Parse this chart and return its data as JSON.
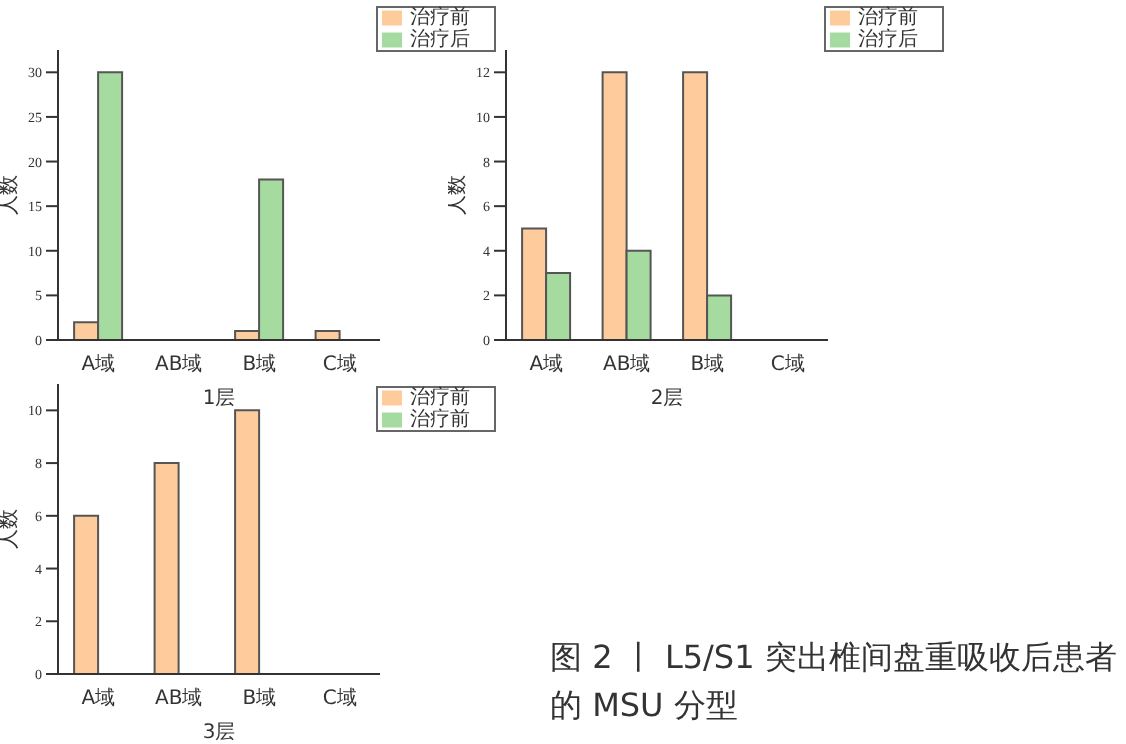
{
  "chart_data": [
    {
      "type": "bar",
      "categories": [
        "A域",
        "AB域",
        "B域",
        "C域"
      ],
      "xlabel": "1层",
      "ylabel": "人数",
      "ylim": [
        0,
        32.5
      ],
      "yticks": [
        0,
        5,
        10,
        15,
        20,
        25,
        30
      ],
      "legend": "top right",
      "series": [
        {
          "name": "治疗前",
          "color": "#fdcb9c",
          "values": [
            2,
            0,
            1,
            1
          ]
        },
        {
          "name": "治疗后",
          "color": "#a6dba0",
          "values": [
            30,
            0,
            18,
            0
          ]
        }
      ]
    },
    {
      "type": "bar",
      "categories": [
        "A域",
        "AB域",
        "B域",
        "C域"
      ],
      "xlabel": "2层",
      "ylabel": "人数",
      "ylim": [
        0,
        13
      ],
      "yticks": [
        0,
        2,
        4,
        6,
        8,
        10,
        12
      ],
      "legend": "top right",
      "series": [
        {
          "name": "治疗前",
          "color": "#fdcb9c",
          "values": [
            5,
            12,
            12,
            0
          ]
        },
        {
          "name": "治疗后",
          "color": "#a6dba0",
          "values": [
            3,
            4,
            2,
            0
          ]
        }
      ]
    },
    {
      "type": "bar",
      "categories": [
        "A域",
        "AB域",
        "B域",
        "C域"
      ],
      "xlabel": "3层",
      "ylabel": "人数",
      "ylim": [
        0,
        11
      ],
      "yticks": [
        0,
        2,
        4,
        6,
        8,
        10
      ],
      "legend": "top right",
      "series": [
        {
          "name": "治疗前",
          "color": "#fdcb9c",
          "values": [
            6,
            8,
            10,
            0
          ]
        },
        {
          "name": "治疗前",
          "color": "#a6dba0",
          "values": [
            0,
            0,
            0,
            0
          ]
        }
      ],
      "annotations": [
        "图 2 丨 L5/S1 突出椎间盘重吸收后患者的 MSU 分型"
      ]
    }
  ]
}
